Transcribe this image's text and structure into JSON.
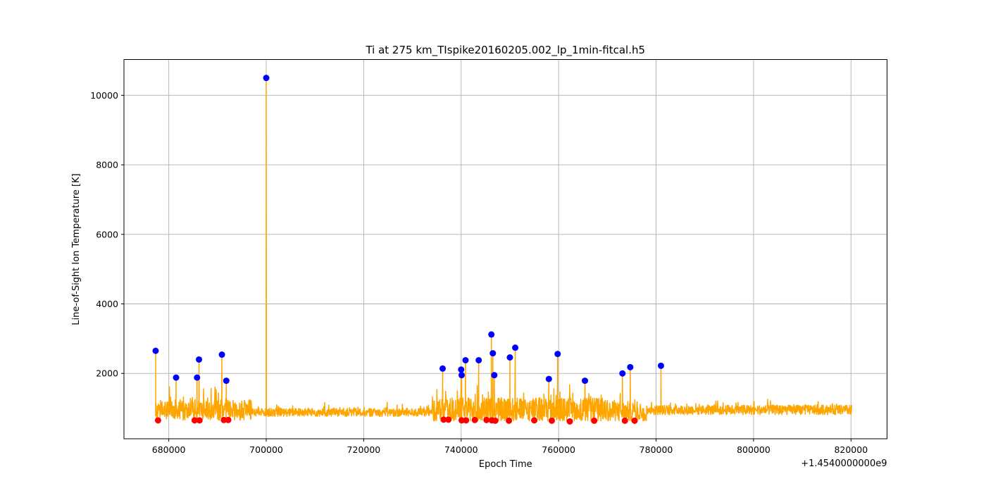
{
  "chart_data": {
    "type": "line",
    "title": "Ti at 275 km_TIspike20160205.002_lp_1min-fitcal.h5",
    "xlabel": "Epoch Time",
    "ylabel": "Line-of-Sight Ion Temperature [K]",
    "x_offset_label": "+1.4540000000e9",
    "xlim": [
      670800,
      827400
    ],
    "ylim": [
      120,
      11030
    ],
    "x_ticks": [
      680000,
      700000,
      720000,
      740000,
      760000,
      780000,
      800000,
      820000
    ],
    "x_tick_labels": [
      "680000",
      "700000",
      "720000",
      "740000",
      "760000",
      "780000",
      "800000",
      "820000"
    ],
    "y_ticks": [
      2000,
      4000,
      6000,
      8000,
      10000
    ],
    "y_tick_labels": [
      "2000",
      "4000",
      "6000",
      "8000",
      "10000"
    ],
    "grid": true,
    "series": [
      {
        "kind": "line",
        "color": "#ffa500",
        "x_start": 677300,
        "x_end": 820200,
        "x_step": 60,
        "baseline_segments": [
          {
            "x_from": 677300,
            "x_to": 697000,
            "level": 950,
            "amp": 300
          },
          {
            "x_from": 697000,
            "x_to": 734000,
            "level": 880,
            "amp": 120
          },
          {
            "x_from": 734000,
            "x_to": 770000,
            "level": 950,
            "amp": 350
          },
          {
            "x_from": 770000,
            "x_to": 778000,
            "level": 900,
            "amp": 300
          },
          {
            "x_from": 778000,
            "x_to": 820200,
            "level": 950,
            "amp": 140
          }
        ],
        "spikes": [
          {
            "x": 677300,
            "y": 2650
          },
          {
            "x": 681500,
            "y": 1880
          },
          {
            "x": 685800,
            "y": 1880
          },
          {
            "x": 686200,
            "y": 2400
          },
          {
            "x": 690900,
            "y": 2540
          },
          {
            "x": 691800,
            "y": 1790
          },
          {
            "x": 700000,
            "y": 10500
          },
          {
            "x": 736200,
            "y": 2140
          },
          {
            "x": 740000,
            "y": 2110
          },
          {
            "x": 740100,
            "y": 1950
          },
          {
            "x": 740900,
            "y": 2380
          },
          {
            "x": 743600,
            "y": 2380
          },
          {
            "x": 746200,
            "y": 3120
          },
          {
            "x": 746500,
            "y": 2580
          },
          {
            "x": 746800,
            "y": 1950
          },
          {
            "x": 750000,
            "y": 2460
          },
          {
            "x": 751100,
            "y": 2740
          },
          {
            "x": 758000,
            "y": 1840
          },
          {
            "x": 759800,
            "y": 2560
          },
          {
            "x": 765400,
            "y": 1790
          },
          {
            "x": 773100,
            "y": 2000
          },
          {
            "x": 774700,
            "y": 2180
          },
          {
            "x": 781000,
            "y": 2220
          }
        ]
      },
      {
        "kind": "scatter",
        "color": "#0000ff",
        "marker": "peak",
        "points": [
          [
            677300,
            2650
          ],
          [
            681500,
            1880
          ],
          [
            685800,
            1880
          ],
          [
            686200,
            2400
          ],
          [
            690900,
            2540
          ],
          [
            691800,
            1790
          ],
          [
            700000,
            10500
          ],
          [
            736200,
            2140
          ],
          [
            740000,
            2110
          ],
          [
            740100,
            1950
          ],
          [
            740900,
            2380
          ],
          [
            743600,
            2380
          ],
          [
            746200,
            3120
          ],
          [
            746500,
            2580
          ],
          [
            746800,
            1950
          ],
          [
            750000,
            2460
          ],
          [
            751100,
            2740
          ],
          [
            758000,
            1840
          ],
          [
            759800,
            2560
          ],
          [
            765400,
            1790
          ],
          [
            773100,
            2000
          ],
          [
            774700,
            2180
          ],
          [
            781000,
            2220
          ]
        ]
      },
      {
        "kind": "scatter",
        "color": "#ff0000",
        "marker": "trough",
        "points": [
          [
            677800,
            650
          ],
          [
            685300,
            650
          ],
          [
            686300,
            650
          ],
          [
            691300,
            660
          ],
          [
            692200,
            660
          ],
          [
            736400,
            670
          ],
          [
            737400,
            670
          ],
          [
            740100,
            650
          ],
          [
            741000,
            650
          ],
          [
            742800,
            660
          ],
          [
            745200,
            660
          ],
          [
            746300,
            650
          ],
          [
            747000,
            640
          ],
          [
            749800,
            640
          ],
          [
            755000,
            650
          ],
          [
            758600,
            640
          ],
          [
            762300,
            620
          ],
          [
            767300,
            640
          ],
          [
            773600,
            640
          ],
          [
            775600,
            640
          ]
        ]
      }
    ]
  }
}
